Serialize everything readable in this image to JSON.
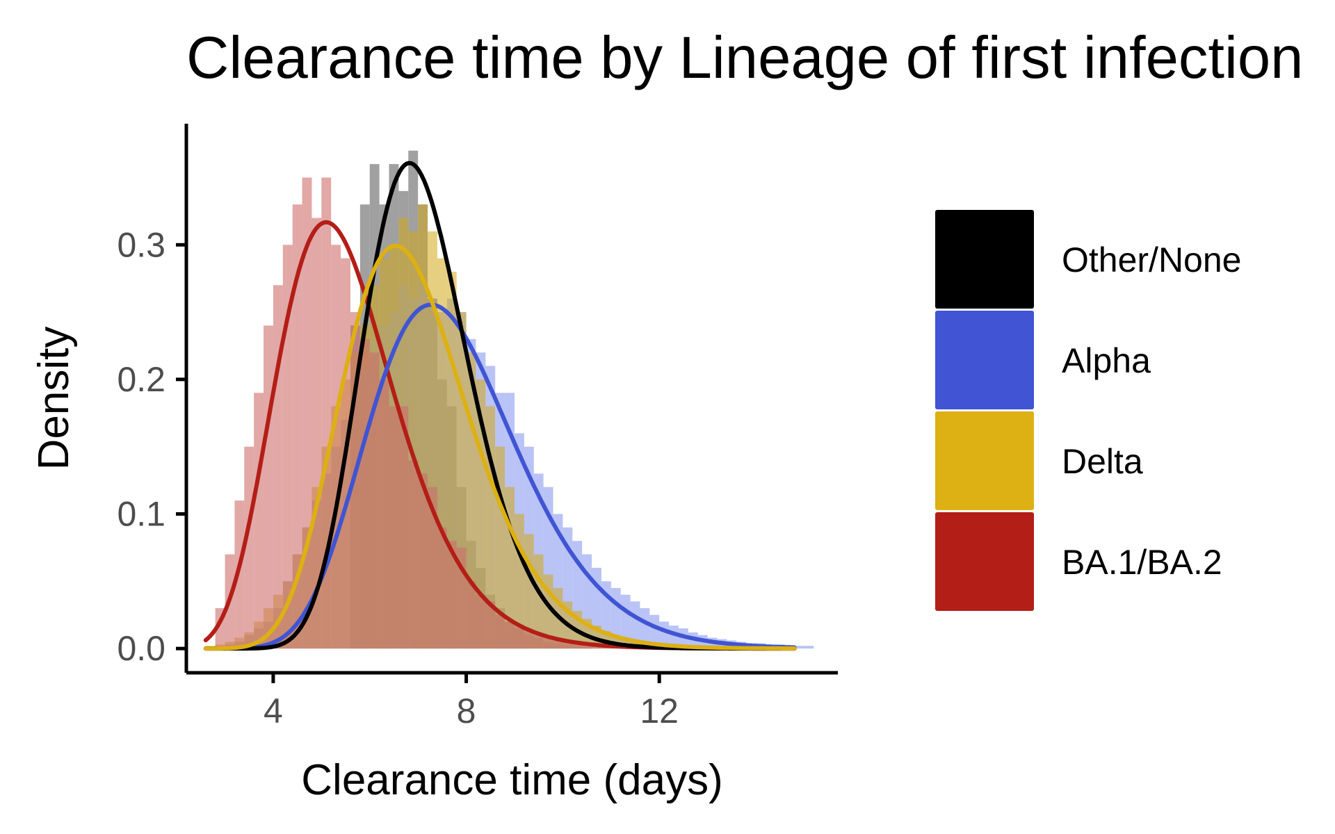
{
  "chart_data": {
    "type": "histogram",
    "title": "Clearance time by Lineage of first infection",
    "xlabel": "Clearance time (days)",
    "ylabel": "Density",
    "xlim": [
      2.2,
      15.7
    ],
    "ylim": [
      -0.018,
      0.39
    ],
    "x_ticks": [
      {
        "value": 4,
        "label": "4"
      },
      {
        "value": 8,
        "label": "8"
      },
      {
        "value": 12,
        "label": "12"
      }
    ],
    "y_ticks": [
      {
        "value": 0.0,
        "label": "0.0"
      },
      {
        "value": 0.1,
        "label": "0.1"
      },
      {
        "value": 0.2,
        "label": "0.2"
      },
      {
        "value": 0.3,
        "label": "0.3"
      }
    ],
    "grid": false,
    "legend_position": "right",
    "bin_width": 0.2,
    "series": [
      {
        "name": "Other/None",
        "color": "#000000",
        "bar_color": "#808080",
        "bar_opacity": 0.75,
        "hist": {
          "start": 5.6,
          "values": [
            0.24,
            0.33,
            0.36,
            0.33,
            0.36,
            0.34,
            0.37,
            0.33,
            0.26,
            0.2,
            0.18,
            0.12,
            0.08,
            0.06,
            0.04,
            0.03,
            0.02,
            0.015,
            0.01,
            0.008,
            0.005,
            0.004,
            0.003,
            0.002,
            0.001
          ]
        },
        "curve": {
          "model": "lognormal",
          "median": 7.0,
          "sigma": 0.16
        }
      },
      {
        "name": "Alpha",
        "color": "#4054d4",
        "bar_color": "#8a9bee",
        "bar_opacity": 0.6,
        "hist": {
          "start": 2.6,
          "values": [
            0.001,
            0.002,
            0.003,
            0.005,
            0.01,
            0.015,
            0.02,
            0.03,
            0.05,
            0.07,
            0.09,
            0.11,
            0.13,
            0.15,
            0.17,
            0.2,
            0.21,
            0.23,
            0.24,
            0.25,
            0.27,
            0.26,
            0.27,
            0.26,
            0.25,
            0.26,
            0.25,
            0.23,
            0.22,
            0.21,
            0.19,
            0.19,
            0.16,
            0.15,
            0.13,
            0.12,
            0.1,
            0.09,
            0.08,
            0.07,
            0.06,
            0.05,
            0.045,
            0.04,
            0.035,
            0.03,
            0.025,
            0.02,
            0.017,
            0.015,
            0.012,
            0.01,
            0.008,
            0.007,
            0.006,
            0.005,
            0.004,
            0.004,
            0.003,
            0.003,
            0.002,
            0.002,
            0.002
          ]
        },
        "curve": {
          "model": "lognormal",
          "median": 7.6,
          "sigma": 0.21
        }
      },
      {
        "name": "Delta",
        "color": "#ddb013",
        "bar_color": "#d1a818",
        "bar_opacity": 0.55,
        "hist": {
          "start": 2.6,
          "values": [
            0.002,
            0.003,
            0.005,
            0.008,
            0.012,
            0.02,
            0.03,
            0.04,
            0.05,
            0.07,
            0.09,
            0.12,
            0.15,
            0.18,
            0.2,
            0.22,
            0.24,
            0.27,
            0.29,
            0.3,
            0.32,
            0.31,
            0.33,
            0.31,
            0.29,
            0.28,
            0.25,
            0.22,
            0.2,
            0.18,
            0.15,
            0.12,
            0.1,
            0.085,
            0.07,
            0.055,
            0.045,
            0.035,
            0.028,
            0.022,
            0.017,
            0.013,
            0.01,
            0.008,
            0.006,
            0.005,
            0.004,
            0.003,
            0.002,
            0.002
          ]
        },
        "curve": {
          "model": "lognormal",
          "median": 6.8,
          "sigma": 0.2
        }
      },
      {
        "name": "BA.1/BA.2",
        "color": "#b31e17",
        "bar_color": "#cd6e6a",
        "bar_opacity": 0.6,
        "hist": {
          "start": 2.6,
          "values": [
            0.0,
            0.03,
            0.07,
            0.11,
            0.15,
            0.19,
            0.24,
            0.27,
            0.3,
            0.33,
            0.35,
            0.32,
            0.35,
            0.3,
            0.29,
            0.25,
            0.23,
            0.22,
            0.2,
            0.18,
            0.18,
            0.14,
            0.13,
            0.12,
            0.09,
            0.08,
            0.075,
            0.05,
            0.04,
            0.035,
            0.025,
            0.02,
            0.017,
            0.013,
            0.01,
            0.008,
            0.006,
            0.005,
            0.004,
            0.003,
            0.002,
            0.002,
            0.001
          ]
        },
        "curve": {
          "model": "lognormal",
          "median": 5.4,
          "sigma": 0.24
        }
      }
    ]
  }
}
